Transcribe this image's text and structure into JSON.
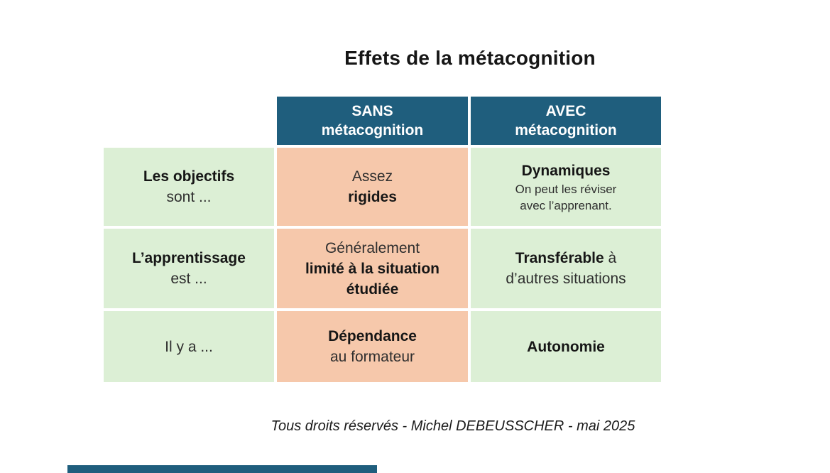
{
  "title": "Effets de la métacognition",
  "footer": "Tous droits réservés - Michel DEBEUSSCHER - mai 2025",
  "colors": {
    "header-bg": "#1f5e7d",
    "green-bg": "#dcefd5",
    "salmon-bg": "#f6c8ab",
    "accent-bar": "#1f5e7d",
    "text": "#212121"
  },
  "table": {
    "headers": [
      {
        "lines": [
          {
            "seg": [
              {
                "t": "SANS",
                "b": true
              }
            ]
          },
          {
            "seg": [
              {
                "t": "métacognition",
                "b": true
              }
            ]
          }
        ]
      },
      {
        "lines": [
          {
            "seg": [
              {
                "t": "AVEC",
                "b": true
              }
            ]
          },
          {
            "seg": [
              {
                "t": "métacognition",
                "b": true
              }
            ]
          }
        ]
      }
    ],
    "rows": [
      {
        "label": {
          "lines": [
            {
              "seg": [
                {
                  "t": "Les objectifs",
                  "b": true
                }
              ]
            },
            {
              "seg": [
                {
                  "t": "sont ...",
                  "b": false
                }
              ]
            }
          ]
        },
        "sans": {
          "lines": [
            {
              "seg": [
                {
                  "t": "Assez",
                  "b": false
                }
              ]
            },
            {
              "seg": [
                {
                  "t": "rigides",
                  "b": true
                }
              ]
            }
          ]
        },
        "avec": {
          "lines": [
            {
              "seg": [
                {
                  "t": "Dynamiques",
                  "b": true
                }
              ]
            },
            {
              "seg": [
                {
                  "t": "On peut les réviser",
                  "b": false
                }
              ],
              "small": true
            },
            {
              "seg": [
                {
                  "t": "avec l’apprenant.",
                  "b": false
                }
              ],
              "small": true
            }
          ]
        }
      },
      {
        "label": {
          "lines": [
            {
              "seg": [
                {
                  "t": "L’apprentissage",
                  "b": true
                }
              ]
            },
            {
              "seg": [
                {
                  "t": "est ...",
                  "b": false
                }
              ]
            }
          ]
        },
        "sans": {
          "lines": [
            {
              "seg": [
                {
                  "t": "Généralement",
                  "b": false
                }
              ]
            },
            {
              "seg": [
                {
                  "t": "limité à la situation",
                  "b": true
                }
              ]
            },
            {
              "seg": [
                {
                  "t": "étudiée",
                  "b": true
                }
              ]
            }
          ]
        },
        "avec": {
          "lines": [
            {
              "seg": [
                {
                  "t": "Transférable",
                  "b": true
                },
                {
                  "t": " à",
                  "b": false
                }
              ]
            },
            {
              "seg": [
                {
                  "t": "d’autres situations",
                  "b": false
                }
              ]
            }
          ]
        }
      },
      {
        "label": {
          "lines": [
            {
              "seg": [
                {
                  "t": "Il y a ...",
                  "b": false
                }
              ]
            }
          ]
        },
        "sans": {
          "lines": [
            {
              "seg": [
                {
                  "t": "Dépendance",
                  "b": true
                }
              ]
            },
            {
              "seg": [
                {
                  "t": "au formateur",
                  "b": false
                }
              ]
            }
          ]
        },
        "avec": {
          "lines": [
            {
              "seg": [
                {
                  "t": "Autonomie",
                  "b": true
                }
              ]
            }
          ]
        }
      }
    ]
  }
}
